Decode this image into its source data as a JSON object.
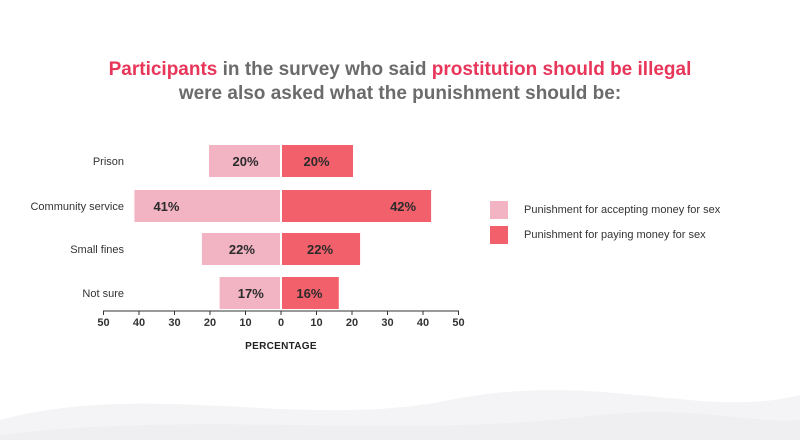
{
  "title": {
    "parts": [
      {
        "text": "Participants",
        "highlight": true
      },
      {
        "text": " in the survey who said ",
        "highlight": false
      },
      {
        "text": "prostitution should be illegal",
        "highlight": true
      },
      {
        "text": " were also asked what the punishment should be:",
        "highlight": false
      }
    ]
  },
  "colors": {
    "accepting": "#f2b3c3",
    "paying": "#f2606b",
    "title_highlight": "#e8365a",
    "title_text": "#6b6b6b"
  },
  "chart_data": {
    "type": "bar",
    "orientation": "horizontal-diverging",
    "categories": [
      "Prison",
      "Community service",
      "Small fines",
      "Not sure"
    ],
    "series": [
      {
        "name": "Punishment for accepting money for sex",
        "side": "left",
        "values": [
          20,
          41,
          22,
          17
        ],
        "labels": [
          "20%",
          "41%",
          "22%",
          "17%"
        ]
      },
      {
        "name": "Punishment for paying money for sex",
        "side": "right",
        "values": [
          20,
          42,
          22,
          16
        ],
        "labels": [
          "20%",
          "42%",
          "22%",
          "16%"
        ]
      }
    ],
    "xlabel": "PERCENTAGE",
    "xlim": [
      -50,
      50
    ],
    "x_ticks": [
      50,
      40,
      30,
      20,
      10,
      0,
      10,
      20,
      30,
      40,
      50
    ],
    "grid": false,
    "legend_position": "right"
  }
}
